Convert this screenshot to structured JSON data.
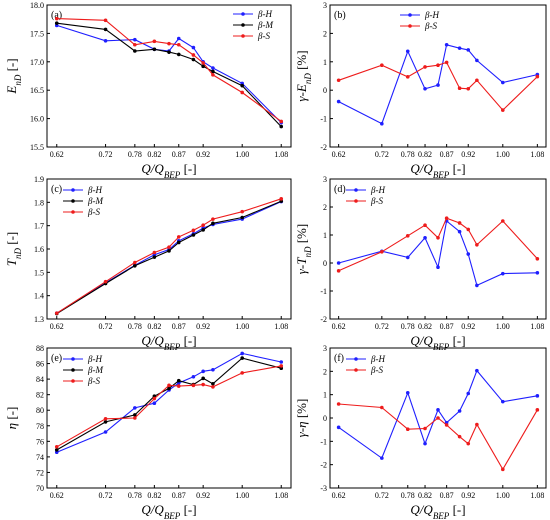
{
  "colors": {
    "H": "#1f1fff",
    "M": "#000000",
    "S": "#ee1c1c"
  },
  "chart_data": [
    {
      "type": "line",
      "panel_tag": "(a)",
      "x": [
        0.62,
        0.72,
        0.78,
        0.82,
        0.85,
        0.87,
        0.9,
        0.92,
        0.94,
        1.0,
        1.08
      ],
      "xticks": [
        "0.62",
        "0.72",
        "0.78",
        "0.82",
        "0.87",
        "0.92",
        "1.00",
        "1.08"
      ],
      "xlabel": {
        "main": "Q/Q",
        "sub": "BEP",
        "unit": " [-]"
      },
      "ylabel": {
        "main": "E",
        "sub": "nD",
        "unit": " [-]"
      },
      "ylim": [
        15.5,
        18.0
      ],
      "yticks": [
        "15.5",
        "16.0",
        "16.5",
        "17.0",
        "17.5",
        "18.0"
      ],
      "legend": "top-right",
      "series": [
        {
          "name": "β-H",
          "key": "H",
          "values": [
            17.64,
            17.37,
            17.39,
            17.22,
            17.19,
            17.41,
            17.25,
            17.0,
            16.89,
            16.62,
            15.93
          ]
        },
        {
          "name": "β-M",
          "key": "M",
          "values": [
            17.68,
            17.57,
            17.19,
            17.22,
            17.17,
            17.13,
            17.04,
            16.92,
            16.83,
            16.58,
            15.86
          ]
        },
        {
          "name": "β-S",
          "key": "S",
          "values": [
            17.76,
            17.73,
            17.3,
            17.36,
            17.32,
            17.3,
            17.12,
            16.98,
            16.77,
            16.46,
            15.95
          ]
        }
      ]
    },
    {
      "type": "line",
      "panel_tag": "(b)",
      "x": [
        0.62,
        0.72,
        0.78,
        0.82,
        0.85,
        0.87,
        0.9,
        0.92,
        0.94,
        1.0,
        1.08
      ],
      "xticks": [
        "0.62",
        "0.72",
        "0.78",
        "0.82",
        "0.87",
        "0.92",
        "1.00",
        "1.08"
      ],
      "xlabel": {
        "main": "Q/Q",
        "sub": "BEP",
        "unit": " [-]"
      },
      "ylabel": {
        "main": "γ-E",
        "sub": "nD",
        "unit": " [%]"
      },
      "ylim": [
        -2,
        3
      ],
      "yticks": [
        "-2",
        "-1",
        "0",
        "1",
        "2",
        "3"
      ],
      "legend": "top-center",
      "series": [
        {
          "name": "β-H",
          "key": "H",
          "values": [
            -0.4,
            -1.18,
            1.37,
            0.05,
            0.18,
            1.6,
            1.48,
            1.42,
            1.05,
            0.27,
            0.55
          ]
        },
        {
          "name": "β-S",
          "key": "S",
          "values": [
            0.35,
            0.88,
            0.47,
            0.82,
            0.88,
            0.98,
            0.07,
            0.05,
            0.35,
            -0.7,
            0.48
          ]
        }
      ]
    },
    {
      "type": "line",
      "panel_tag": "(c)",
      "x": [
        0.62,
        0.72,
        0.78,
        0.82,
        0.85,
        0.87,
        0.9,
        0.92,
        0.94,
        1.0,
        1.08
      ],
      "xticks": [
        "0.62",
        "0.72",
        "0.78",
        "0.82",
        "0.87",
        "0.92",
        "1.00",
        "1.08"
      ],
      "xlabel": {
        "main": "Q/Q",
        "sub": "BEP",
        "unit": " [-]"
      },
      "ylabel": {
        "main": "T",
        "sub": "nD",
        "unit": " [-]"
      },
      "ylim": [
        1.3,
        1.9
      ],
      "yticks": [
        "1.3",
        "1.4",
        "1.5",
        "1.6",
        "1.7",
        "1.8",
        "1.9"
      ],
      "legend": "top-left",
      "series": [
        {
          "name": "β-H",
          "key": "H",
          "values": [
            1.325,
            1.455,
            1.53,
            1.575,
            1.598,
            1.635,
            1.665,
            1.69,
            1.705,
            1.728,
            1.803
          ]
        },
        {
          "name": "β-M",
          "key": "M",
          "values": [
            1.323,
            1.452,
            1.528,
            1.565,
            1.592,
            1.628,
            1.66,
            1.682,
            1.71,
            1.735,
            1.805
          ]
        },
        {
          "name": "β-S",
          "key": "S",
          "values": [
            1.325,
            1.46,
            1.542,
            1.585,
            1.608,
            1.652,
            1.68,
            1.702,
            1.728,
            1.76,
            1.815
          ]
        }
      ]
    },
    {
      "type": "line",
      "panel_tag": "(d)",
      "x": [
        0.62,
        0.72,
        0.78,
        0.82,
        0.85,
        0.87,
        0.9,
        0.92,
        0.94,
        1.0,
        1.08
      ],
      "xticks": [
        "0.62",
        "0.72",
        "0.78",
        "0.82",
        "0.87",
        "0.92",
        "1.00",
        "1.08"
      ],
      "xlabel": {
        "main": "Q/Q",
        "sub": "BEP",
        "unit": " [-]"
      },
      "ylabel": {
        "main": "γ-T",
        "sub": "nD",
        "unit": " [%]"
      },
      "ylim": [
        -2,
        3
      ],
      "yticks": [
        "-2",
        "-1",
        "0",
        "1",
        "2",
        "3"
      ],
      "legend": "top-left",
      "series": [
        {
          "name": "β-H",
          "key": "H",
          "values": [
            0.0,
            0.42,
            0.2,
            0.9,
            -0.15,
            1.5,
            1.12,
            0.32,
            -0.8,
            -0.38,
            -0.35
          ]
        },
        {
          "name": "β-S",
          "key": "S",
          "values": [
            -0.28,
            0.4,
            0.97,
            1.35,
            0.9,
            1.6,
            1.43,
            1.2,
            0.65,
            1.5,
            0.15
          ]
        }
      ]
    },
    {
      "type": "line",
      "panel_tag": "(e)",
      "x": [
        0.62,
        0.72,
        0.78,
        0.82,
        0.85,
        0.87,
        0.9,
        0.92,
        0.94,
        1.0,
        1.08
      ],
      "xticks": [
        "0.62",
        "0.72",
        "0.78",
        "0.82",
        "0.87",
        "0.92",
        "1.00",
        "1.08"
      ],
      "xlabel": {
        "main": "Q/Q",
        "sub": "BEP",
        "unit": " [-]"
      },
      "ylabel": {
        "main": "η",
        "sub": "",
        "unit": " [-]"
      },
      "ylim": [
        70,
        88
      ],
      "yticks": [
        "70",
        "72",
        "74",
        "76",
        "78",
        "80",
        "82",
        "84",
        "86",
        "88"
      ],
      "legend": "top-left",
      "series": [
        {
          "name": "β-H",
          "key": "H",
          "values": [
            74.6,
            77.2,
            80.3,
            80.9,
            82.6,
            83.5,
            84.3,
            85.0,
            85.2,
            87.3,
            86.2
          ]
        },
        {
          "name": "β-M",
          "key": "M",
          "values": [
            74.9,
            78.5,
            79.4,
            81.8,
            82.8,
            83.8,
            83.3,
            84.1,
            83.4,
            86.7,
            85.4
          ]
        },
        {
          "name": "β-S",
          "key": "S",
          "values": [
            75.3,
            78.9,
            79.0,
            81.5,
            83.2,
            83.1,
            83.2,
            83.3,
            83.0,
            84.8,
            85.7
          ]
        }
      ]
    },
    {
      "type": "line",
      "panel_tag": "(f)",
      "x": [
        0.62,
        0.72,
        0.78,
        0.82,
        0.85,
        0.87,
        0.9,
        0.92,
        0.94,
        1.0,
        1.08
      ],
      "xticks": [
        "0.62",
        "0.72",
        "0.78",
        "0.82",
        "0.87",
        "0.92",
        "1.00",
        "1.08"
      ],
      "xlabel": {
        "main": "Q/Q",
        "sub": "BEP",
        "unit": " [-]"
      },
      "ylabel": {
        "main": "γ-η",
        "sub": "",
        "unit": " [%]"
      },
      "ylim": [
        -3,
        3
      ],
      "yticks": [
        "-3",
        "-2",
        "-1",
        "0",
        "1",
        "2",
        "3"
      ],
      "legend": "top-left",
      "series": [
        {
          "name": "β-H",
          "key": "H",
          "values": [
            -0.4,
            -1.72,
            1.08,
            -1.1,
            0.35,
            -0.2,
            0.3,
            1.05,
            2.03,
            0.7,
            0.95
          ]
        },
        {
          "name": "β-S",
          "key": "S",
          "values": [
            0.6,
            0.45,
            -0.48,
            -0.45,
            0.0,
            -0.3,
            -0.8,
            -1.1,
            -0.28,
            -2.2,
            0.35
          ]
        }
      ]
    }
  ]
}
